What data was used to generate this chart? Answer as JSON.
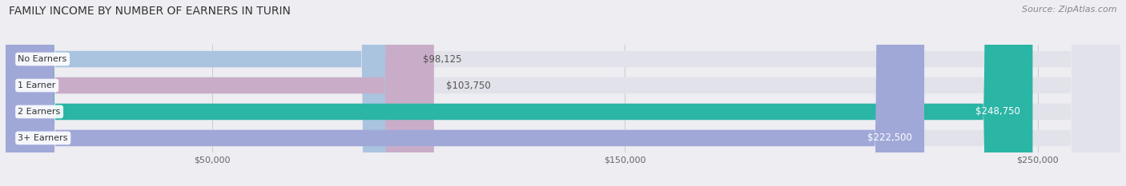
{
  "title": "FAMILY INCOME BY NUMBER OF EARNERS IN TURIN",
  "source": "Source: ZipAtlas.com",
  "categories": [
    "No Earners",
    "1 Earner",
    "2 Earners",
    "3+ Earners"
  ],
  "values": [
    98125,
    103750,
    248750,
    222500
  ],
  "bar_colors": [
    "#aac4e0",
    "#c9adc8",
    "#2ab5a5",
    "#a0a8d8"
  ],
  "label_colors": [
    "#555555",
    "#555555",
    "#ffffff",
    "#ffffff"
  ],
  "max_value": 270000,
  "x_ticks": [
    50000,
    150000,
    250000
  ],
  "x_tick_labels": [
    "$50,000",
    "$150,000",
    "$250,000"
  ],
  "background_color": "#ededf2",
  "bar_background_color": "#e2e2ea",
  "title_fontsize": 10,
  "source_fontsize": 8,
  "label_fontsize": 8.5,
  "category_fontsize": 8
}
